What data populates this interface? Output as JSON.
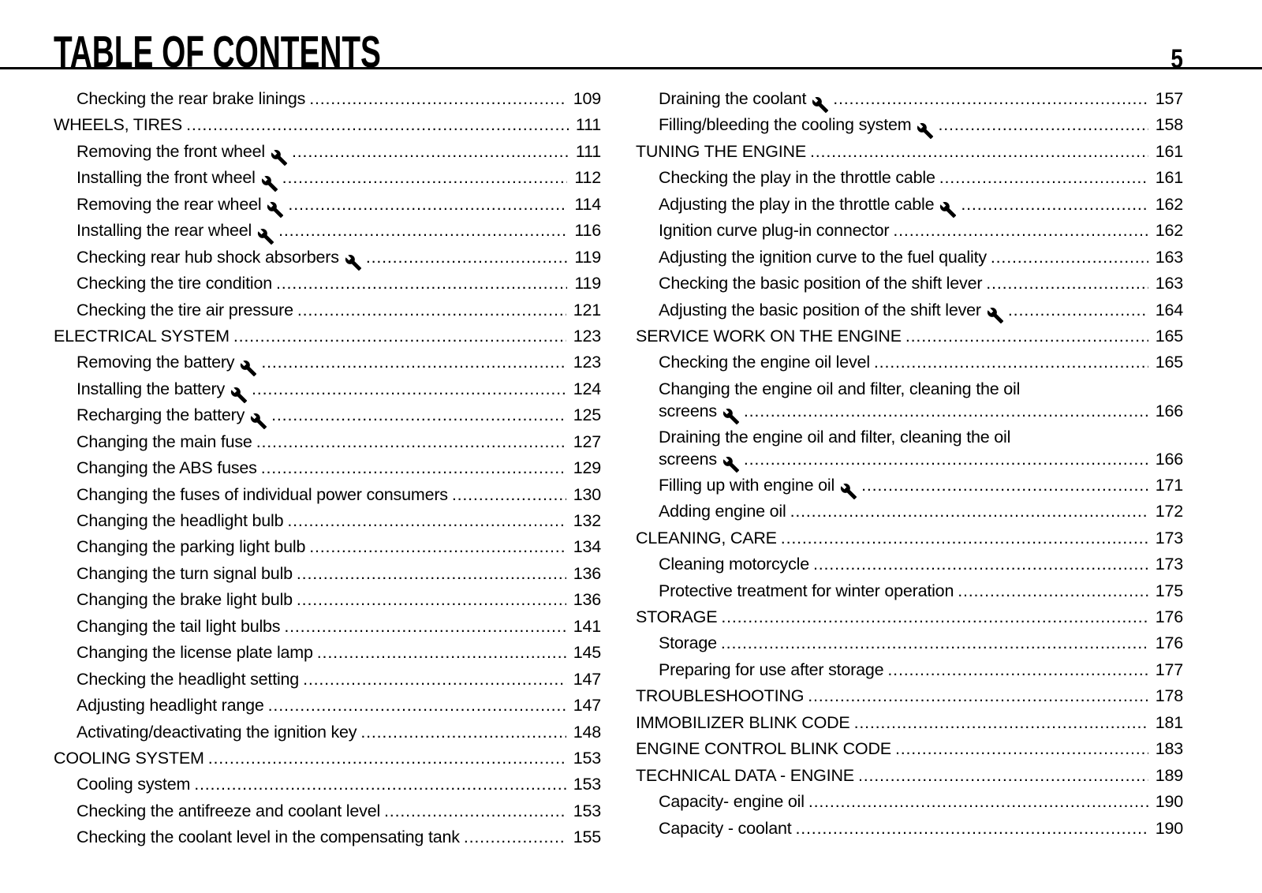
{
  "header": {
    "title": "TABLE OF CONTENTS",
    "page_number": "5"
  },
  "icons": [
    {
      "name": "wrench-icon",
      "meaning": "workshop tools required",
      "glyph": "wrench"
    }
  ],
  "toc": {
    "columns": [
      {
        "name": "left",
        "entries": [
          {
            "label": "Checking the rear brake linings",
            "page": "109",
            "type": "item",
            "wrench": false
          },
          {
            "label": "WHEELS, TIRES",
            "page": "111",
            "type": "section",
            "wrench": false
          },
          {
            "label": "Removing the front wheel",
            "page": "111",
            "type": "item",
            "wrench": true
          },
          {
            "label": "Installing the front wheel",
            "page": "112",
            "type": "item",
            "wrench": true
          },
          {
            "label": "Removing the rear wheel",
            "page": "114",
            "type": "item",
            "wrench": true
          },
          {
            "label": "Installing the rear wheel",
            "page": "116",
            "type": "item",
            "wrench": true
          },
          {
            "label": "Checking rear hub shock absorbers",
            "page": "119",
            "type": "item",
            "wrench": true
          },
          {
            "label": "Checking the tire condition",
            "page": "119",
            "type": "item",
            "wrench": false
          },
          {
            "label": "Checking the tire air pressure",
            "page": "121",
            "type": "item",
            "wrench": false
          },
          {
            "label": "ELECTRICAL SYSTEM",
            "page": "123",
            "type": "section",
            "wrench": false
          },
          {
            "label": "Removing the battery",
            "page": "123",
            "type": "item",
            "wrench": true
          },
          {
            "label": "Installing the battery",
            "page": "124",
            "type": "item",
            "wrench": true
          },
          {
            "label": "Recharging the battery",
            "page": "125",
            "type": "item",
            "wrench": true
          },
          {
            "label": "Changing the main fuse",
            "page": "127",
            "type": "item",
            "wrench": false
          },
          {
            "label": "Changing the ABS fuses",
            "page": "129",
            "type": "item",
            "wrench": false
          },
          {
            "label": "Changing the fuses of individual power consumers",
            "page": "130",
            "type": "item",
            "wrench": false
          },
          {
            "label": "Changing the headlight bulb",
            "page": "132",
            "type": "item",
            "wrench": false
          },
          {
            "label": "Changing the parking light bulb",
            "page": "134",
            "type": "item",
            "wrench": false
          },
          {
            "label": "Changing the turn signal bulb",
            "page": "136",
            "type": "item",
            "wrench": false
          },
          {
            "label": "Changing the brake light bulb",
            "page": "136",
            "type": "item",
            "wrench": false
          },
          {
            "label": "Changing the tail light bulbs",
            "page": "141",
            "type": "item",
            "wrench": false
          },
          {
            "label": "Changing the license plate lamp",
            "page": "145",
            "type": "item",
            "wrench": false
          },
          {
            "label": "Checking the headlight setting",
            "page": "147",
            "type": "item",
            "wrench": false
          },
          {
            "label": "Adjusting headlight range",
            "page": "147",
            "type": "item",
            "wrench": false
          },
          {
            "label": "Activating/deactivating the ignition key",
            "page": "148",
            "type": "item",
            "wrench": false
          },
          {
            "label": "COOLING SYSTEM",
            "page": "153",
            "type": "section",
            "wrench": false
          },
          {
            "label": "Cooling system",
            "page": "153",
            "type": "item",
            "wrench": false
          },
          {
            "label": "Checking the antifreeze and coolant level",
            "page": "153",
            "type": "item",
            "wrench": false
          },
          {
            "label": "Checking the coolant level in the compensating tank",
            "page": "155",
            "type": "item",
            "wrench": false
          }
        ]
      },
      {
        "name": "right",
        "entries": [
          {
            "label": "Draining the coolant",
            "page": "157",
            "type": "item",
            "wrench": true
          },
          {
            "label": "Filling/bleeding the cooling system",
            "page": "158",
            "type": "item",
            "wrench": true
          },
          {
            "label": "TUNING THE ENGINE",
            "page": "161",
            "type": "section",
            "wrench": false
          },
          {
            "label": "Checking the play in the throttle cable",
            "page": "161",
            "type": "item",
            "wrench": false
          },
          {
            "label": "Adjusting the play in the throttle cable",
            "page": "162",
            "type": "item",
            "wrench": true
          },
          {
            "label": "Ignition curve plug-in connector",
            "page": "162",
            "type": "item",
            "wrench": false
          },
          {
            "label": "Adjusting the ignition curve to the fuel quality",
            "page": "163",
            "type": "item",
            "wrench": false
          },
          {
            "label": "Checking the basic position of the shift lever",
            "page": "163",
            "type": "item",
            "wrench": false
          },
          {
            "label": "Adjusting the basic position of the shift lever",
            "page": "164",
            "type": "item",
            "wrench": true
          },
          {
            "label": "SERVICE WORK ON THE ENGINE",
            "page": "165",
            "type": "section",
            "wrench": false
          },
          {
            "label": "Checking the engine oil level",
            "page": "165",
            "type": "item",
            "wrench": false
          },
          {
            "label": "Changing the engine oil and filter, cleaning the oil",
            "label2": "screens",
            "page": "166",
            "type": "item",
            "wrench": true
          },
          {
            "label": "Draining the engine oil and filter, cleaning the oil",
            "label2": "screens",
            "page": "166",
            "type": "item",
            "wrench": true
          },
          {
            "label": "Filling up with engine oil",
            "page": "171",
            "type": "item",
            "wrench": true
          },
          {
            "label": "Adding engine oil",
            "page": "172",
            "type": "item",
            "wrench": false
          },
          {
            "label": "CLEANING, CARE",
            "page": "173",
            "type": "section",
            "wrench": false
          },
          {
            "label": "Cleaning motorcycle",
            "page": "173",
            "type": "item",
            "wrench": false
          },
          {
            "label": "Protective treatment for winter operation",
            "page": "175",
            "type": "item",
            "wrench": false
          },
          {
            "label": "STORAGE",
            "page": "176",
            "type": "section",
            "wrench": false
          },
          {
            "label": "Storage",
            "page": "176",
            "type": "item",
            "wrench": false
          },
          {
            "label": "Preparing for use after storage",
            "page": "177",
            "type": "item",
            "wrench": false
          },
          {
            "label": "TROUBLESHOOTING",
            "page": "178",
            "type": "section",
            "wrench": false
          },
          {
            "label": "IMMOBILIZER BLINK CODE",
            "page": "181",
            "type": "section",
            "wrench": false
          },
          {
            "label": "ENGINE CONTROL BLINK CODE",
            "page": "183",
            "type": "section",
            "wrench": false
          },
          {
            "label": "TECHNICAL DATA - ENGINE",
            "page": "189",
            "type": "section",
            "wrench": false
          },
          {
            "label": "Capacity- engine oil",
            "page": "190",
            "type": "item",
            "wrench": false
          },
          {
            "label": "Capacity - coolant",
            "page": "190",
            "type": "item",
            "wrench": false
          }
        ]
      }
    ]
  }
}
